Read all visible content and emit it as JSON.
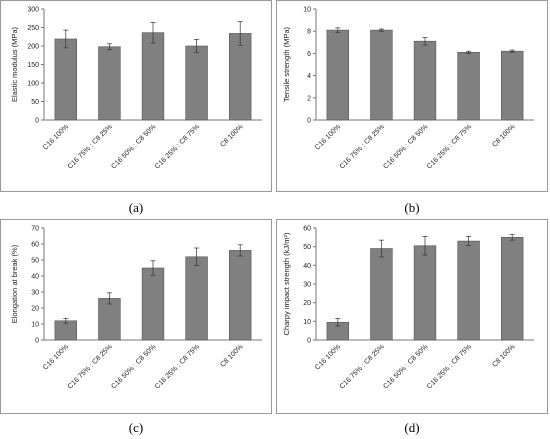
{
  "chart_data": [
    {
      "type": "bar",
      "label": "(a)",
      "ylabel": "Elastic modulus (MPa)",
      "ylim": [
        0,
        300
      ],
      "yticks": [
        0,
        50,
        100,
        150,
        200,
        250,
        300
      ],
      "categories": [
        "C16 100%",
        "C16 75% : C8 25%",
        "C16 50% : C8 50%",
        "C16 25% : C8 75%",
        "C8 100%"
      ],
      "values": [
        219,
        198,
        236,
        200,
        234
      ],
      "errors": [
        24,
        8,
        28,
        18,
        32
      ],
      "grid": false
    },
    {
      "type": "bar",
      "label": "(b)",
      "ylabel": "Tensile strength (MPa)",
      "ylim": [
        0,
        10
      ],
      "yticks": [
        0,
        2,
        4,
        6,
        8,
        10
      ],
      "categories": [
        "C16 100%",
        "C16 75% : C8 25%",
        "C16 50% : C8 50%",
        "C16 25% : C8 75%",
        "C8 100%"
      ],
      "values": [
        8.1,
        8.1,
        7.1,
        6.1,
        6.2
      ],
      "errors": [
        0.2,
        0.1,
        0.35,
        0.1,
        0.1
      ],
      "grid": false
    },
    {
      "type": "bar",
      "label": "(c)",
      "ylabel": "Elongation at break (%)",
      "ylim": [
        0,
        70
      ],
      "yticks": [
        0,
        10,
        20,
        30,
        40,
        50,
        60,
        70
      ],
      "categories": [
        "C16 100%",
        "C16 75% : C8 25%",
        "C16 50% : C8 50%",
        "C16 25% : C8 75%",
        "C8 100%"
      ],
      "values": [
        12,
        26,
        45,
        52,
        56
      ],
      "errors": [
        1.5,
        3.5,
        4.5,
        5.5,
        3.5
      ],
      "grid": false
    },
    {
      "type": "bar",
      "label": "(d)",
      "ylabel": "Charpy impact strength (kJ/m²)",
      "ylim": [
        0,
        60
      ],
      "yticks": [
        0,
        10,
        20,
        30,
        40,
        50,
        60
      ],
      "categories": [
        "C16 100%",
        "C16 75% : C8 25%",
        "C16 50% : C8 50%",
        "C16 25% : C8 75%",
        "C8 100%"
      ],
      "values": [
        9.5,
        49,
        50.5,
        53,
        55
      ],
      "errors": [
        2,
        4.5,
        5,
        2.5,
        1.5
      ],
      "grid": false
    }
  ],
  "colors": {
    "bar": "#808080",
    "bar_stroke": "#555555",
    "axis": "#777777",
    "frame": "#9a9a9a"
  }
}
